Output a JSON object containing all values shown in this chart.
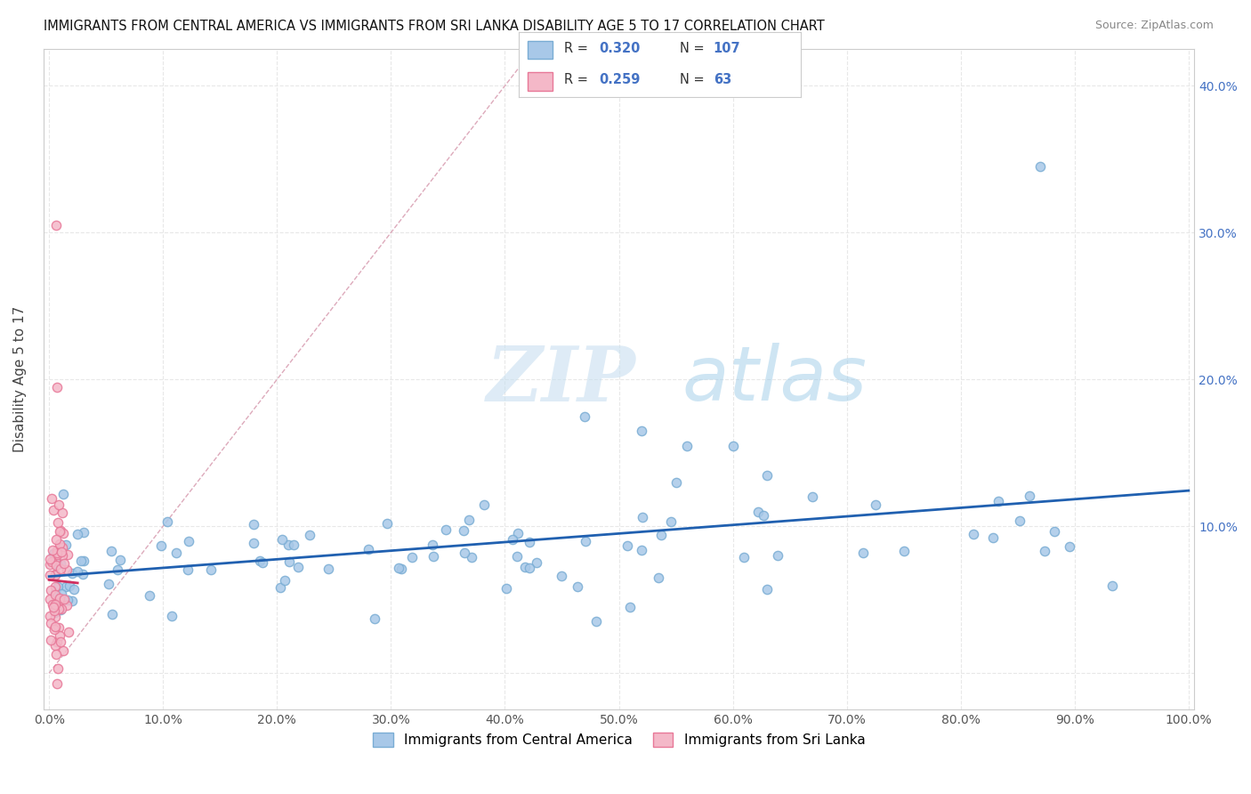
{
  "title": "IMMIGRANTS FROM CENTRAL AMERICA VS IMMIGRANTS FROM SRI LANKA DISABILITY AGE 5 TO 17 CORRELATION CHART",
  "source": "Source: ZipAtlas.com",
  "xlabel": "",
  "ylabel": "Disability Age 5 to 17",
  "xlim": [
    -0.005,
    1.005
  ],
  "ylim": [
    -0.025,
    0.425
  ],
  "x_ticks": [
    0.0,
    0.1,
    0.2,
    0.3,
    0.4,
    0.5,
    0.6,
    0.7,
    0.8,
    0.9,
    1.0
  ],
  "x_tick_labels": [
    "0.0%",
    "10.0%",
    "20.0%",
    "30.0%",
    "40.0%",
    "50.0%",
    "60.0%",
    "70.0%",
    "80.0%",
    "90.0%",
    "100.0%"
  ],
  "y_ticks": [
    0.0,
    0.1,
    0.2,
    0.3,
    0.4
  ],
  "y_tick_labels_left": [
    "",
    "",
    "",
    "",
    ""
  ],
  "y_tick_labels_right": [
    "",
    "10.0%",
    "20.0%",
    "30.0%",
    "40.0%"
  ],
  "R_blue": 0.32,
  "N_blue": 107,
  "R_pink": 0.259,
  "N_pink": 63,
  "blue_color": "#a8c8e8",
  "blue_edge_color": "#7aadd4",
  "pink_color": "#f4b8c8",
  "pink_edge_color": "#e87898",
  "blue_line_color": "#2060b0",
  "pink_line_color": "#d03060",
  "diagonal_color": "#ddaabb",
  "legend_label_blue": "Immigrants from Central America",
  "legend_label_pink": "Immigrants from Sri Lanka",
  "watermark_zip": "ZIP",
  "watermark_atlas": "atlas",
  "grid_color": "#e8e8e8",
  "grid_style": "--"
}
